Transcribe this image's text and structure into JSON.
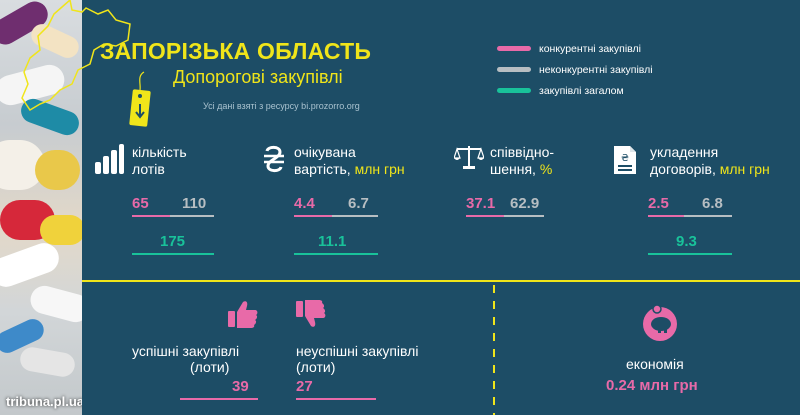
{
  "header": {
    "title": "ЗАПОРІЗЬКА ОБЛАСТЬ",
    "subtitle": "Допорогові закупівлі",
    "source": "Усі дані взяті з ресурсу bi.prozorro.org"
  },
  "legend": [
    {
      "label": "конкурентні закупівлі",
      "color": "#e86aa8"
    },
    {
      "label": "неконкурентні закупівлі",
      "color": "#b7bec2"
    },
    {
      "label": "закупівлі загалом",
      "color": "#19c29a"
    }
  ],
  "metrics": {
    "lots": {
      "label_1": "кількість",
      "label_2": "лотів",
      "competitive": "65",
      "noncompetitive": "110",
      "total": "175",
      "icon": "bar-chart-icon"
    },
    "cost": {
      "label_1": "очікувана",
      "label_2": "вартість,",
      "unit": "млн грн",
      "competitive": "4.4",
      "noncompetitive": "6.7",
      "total": "11.1",
      "icon": "hryvnia-icon"
    },
    "ratio": {
      "label_1": "співвідно-",
      "label_2": "шення,",
      "unit": "%",
      "competitive": "37.1",
      "noncompetitive": "62.9",
      "icon": "scales-icon"
    },
    "contracts": {
      "label_1": "укладення",
      "label_2": "договорів,",
      "unit": "млн грн",
      "competitive": "2.5",
      "noncompetitive": "6.8",
      "total": "9.3",
      "icon": "contract-document-icon"
    }
  },
  "bottom": {
    "success_label_1": "успішні  закупівлі",
    "success_label_2": "(лоти)",
    "success_value": "39",
    "fail_label_1": "неуспішні закупівлі",
    "fail_label_2": "(лоти)",
    "fail_value": "27",
    "economy_label": "економія",
    "economy_value": "0.24 млн грн"
  },
  "footer": {
    "brand": "tribuna.pl.ua"
  },
  "colors": {
    "background": "#1d4d66",
    "accent_yellow": "#f0e51a",
    "pink": "#e86aa8",
    "grey": "#b7bec2",
    "green": "#19c29a"
  }
}
